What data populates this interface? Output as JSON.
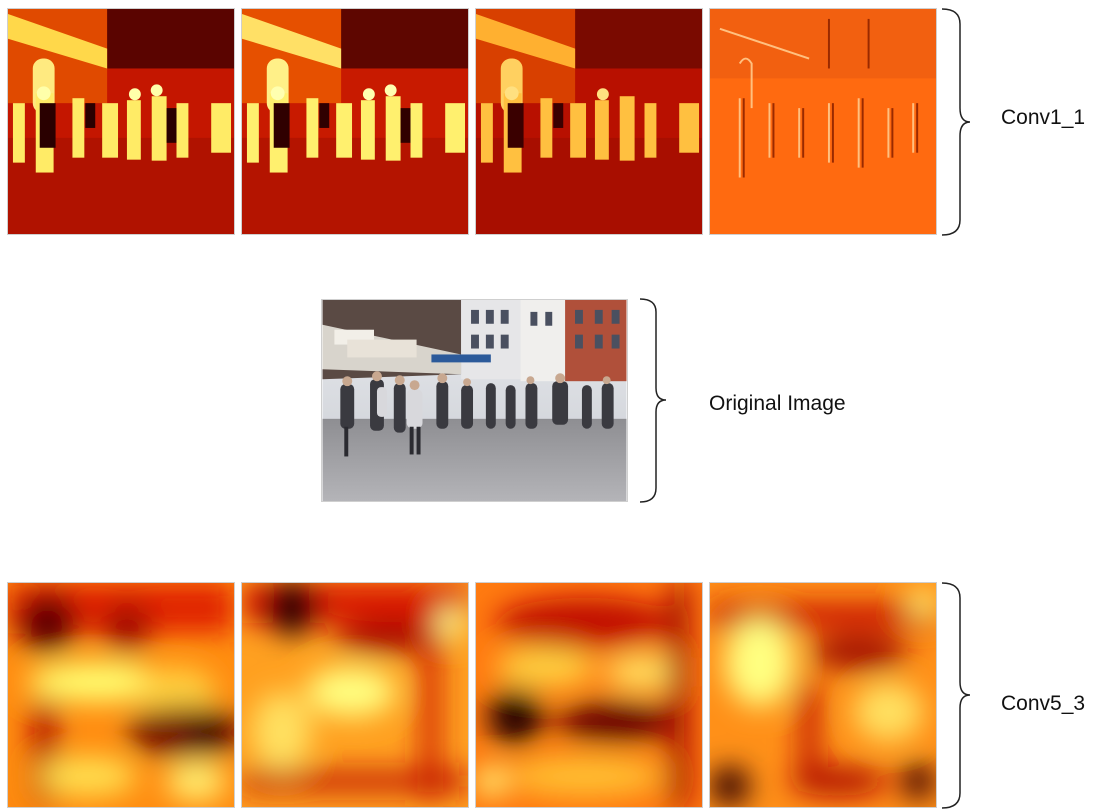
{
  "labels": {
    "conv1": "Conv1_1",
    "original": "Original Image",
    "conv5": "Conv5_3"
  },
  "colors": {
    "background": "#ffffff",
    "heatmap_dark": "#400000",
    "heatmap_red": "#cc1500",
    "heatmap_orange": "#ff7a00",
    "heatmap_yellow": "#ffff66",
    "brace": "#222222"
  }
}
